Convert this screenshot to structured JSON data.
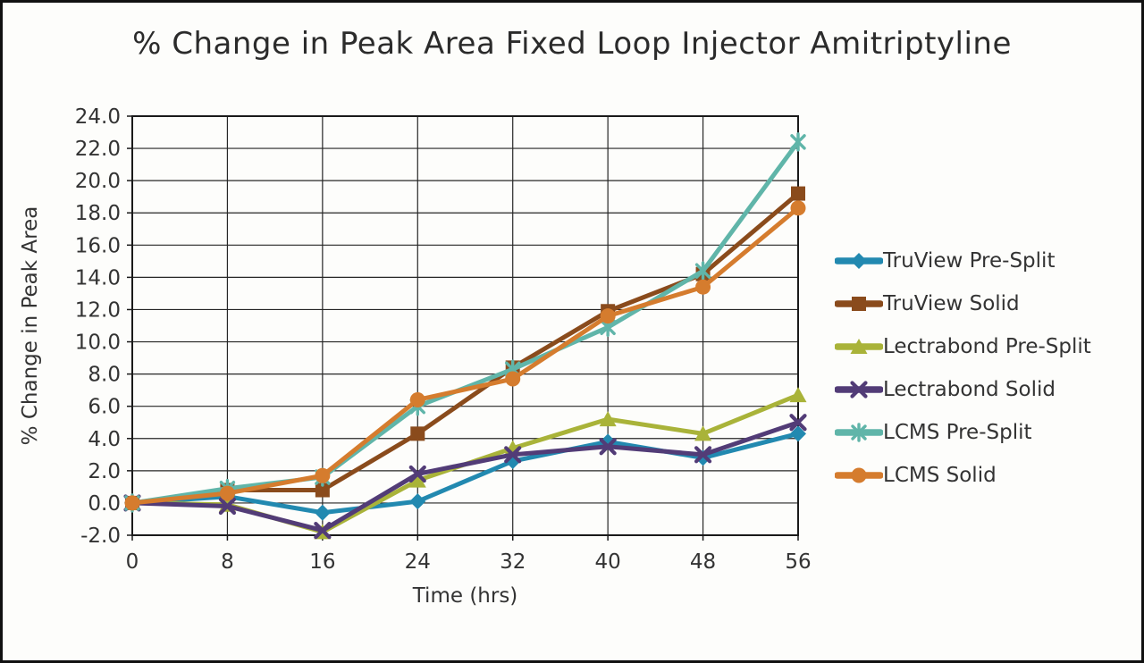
{
  "window": {
    "title": "% Change in Peak Area Fixed Loop Injector Amitriptyline"
  },
  "chart_data": {
    "type": "line",
    "title": "% Change in Peak Area Fixed Loop Injector Amitriptyline",
    "xlabel": "Time (hrs)",
    "ylabel": "% Change in Peak Area",
    "x": [
      0,
      8,
      16,
      24,
      32,
      40,
      48,
      56
    ],
    "x_tick_labels": [
      "0",
      "8",
      "16",
      "24",
      "32",
      "40",
      "48",
      "56"
    ],
    "y_tick_labels": [
      "24.0",
      "22.0",
      "20.0",
      "18.0",
      "16.0",
      "14.0",
      "12.0",
      "10.0",
      "8.0",
      "6.0",
      "4.0",
      "2.0",
      "0.0",
      "-2.0"
    ],
    "ylim": [
      -2.0,
      24.0
    ],
    "xlim": [
      0,
      56
    ],
    "y_step": 2.0,
    "grid": true,
    "legend_position": "right",
    "series": [
      {
        "name": "TruView Pre-Split",
        "color": "#2289b0",
        "marker": "diamond",
        "values": [
          0.0,
          0.4,
          -0.6,
          0.1,
          2.6,
          3.8,
          2.8,
          4.3
        ]
      },
      {
        "name": "TruView Solid",
        "color": "#8a4b1c",
        "marker": "square",
        "values": [
          0.0,
          0.8,
          0.8,
          4.3,
          8.4,
          11.9,
          14.2,
          19.2
        ]
      },
      {
        "name": "Lectrabond Pre-Split",
        "color": "#a9b339",
        "marker": "triangle",
        "values": [
          0.0,
          -0.1,
          -1.8,
          1.4,
          3.4,
          5.2,
          4.3,
          6.7
        ]
      },
      {
        "name": "Lectrabond Solid",
        "color": "#523c77",
        "marker": "x",
        "values": [
          0.0,
          -0.2,
          -1.7,
          1.8,
          3.0,
          3.5,
          3.0,
          5.0
        ]
      },
      {
        "name": "LCMS Pre-Split",
        "color": "#60b5a9",
        "marker": "asterisk",
        "values": [
          0.0,
          0.9,
          1.6,
          6.0,
          8.3,
          10.9,
          14.4,
          22.4
        ]
      },
      {
        "name": "LCMS Solid",
        "color": "#d57c2e",
        "marker": "circle",
        "values": [
          0.0,
          0.6,
          1.7,
          6.4,
          7.7,
          11.6,
          13.4,
          18.3
        ]
      }
    ]
  },
  "colors": {
    "background": "#fdfdfb",
    "frame_border": "#111111",
    "grid": "#262626",
    "axis": "#1a1a1a",
    "text": "#333333"
  }
}
